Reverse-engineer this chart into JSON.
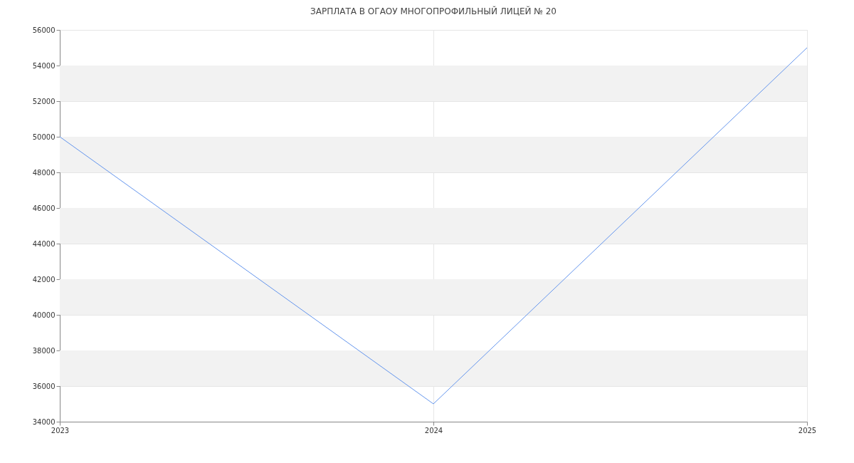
{
  "chart_data": {
    "type": "line",
    "title": "ЗАРПЛАТА В ОГАОУ МНОГОПРОФИЛЬНЫЙ ЛИЦЕЙ № 20",
    "x": [
      2023,
      2024,
      2025
    ],
    "series": [
      {
        "color": "#6495ed",
        "values": [
          50000,
          35000,
          55000
        ]
      }
    ],
    "xlim": [
      2023,
      2025
    ],
    "xticks": [
      2023,
      2024,
      2025
    ],
    "ylim": [
      34000,
      56000
    ],
    "yticks": [
      34000,
      36000,
      38000,
      40000,
      42000,
      44000,
      46000,
      48000,
      50000,
      52000,
      54000,
      56000
    ],
    "bands": [
      {
        "axis": "y",
        "from": 36000,
        "to": 38000,
        "color": "#f2f2f2"
      },
      {
        "axis": "y",
        "from": 40000,
        "to": 42000,
        "color": "#f2f2f2"
      },
      {
        "axis": "y",
        "from": 44000,
        "to": 46000,
        "color": "#f2f2f2"
      },
      {
        "axis": "y",
        "from": 48000,
        "to": 50000,
        "color": "#f2f2f2"
      },
      {
        "axis": "y",
        "from": 52000,
        "to": 54000,
        "color": "#f2f2f2"
      }
    ],
    "grid": true,
    "marker": "none",
    "line_style": "solid"
  }
}
